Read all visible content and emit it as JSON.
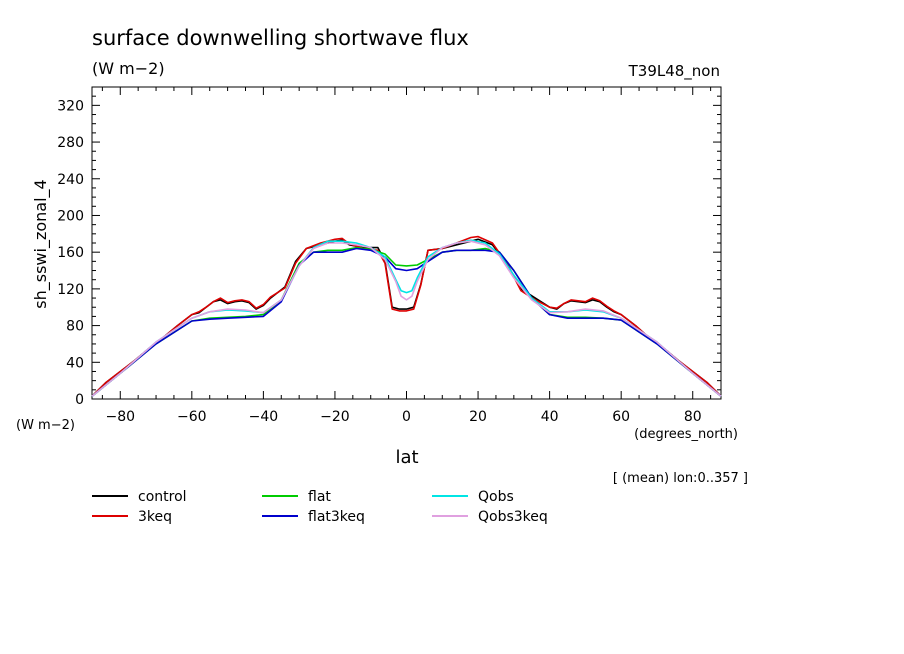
{
  "header": {
    "title": "surface downwelling shortwave flux",
    "units": "(W m−2)",
    "experiment": "T39L48_non"
  },
  "axes": {
    "ylabel": "sh_sswi_zonal_4",
    "yunits": "(W m−2)",
    "xlabel": "lat",
    "xunits": "(degrees_north)"
  },
  "footer_note": "[ (mean) lon:0..357 ]",
  "chart_data": {
    "type": "line",
    "title": "surface downwelling shortwave flux",
    "xlabel": "lat",
    "ylabel": "sh_sswi_zonal_4",
    "xlim": [
      -87.9,
      87.9
    ],
    "ylim": [
      0,
      340
    ],
    "xticks": [
      -80,
      -60,
      -40,
      -20,
      0,
      20,
      40,
      60,
      80
    ],
    "yticks": [
      0,
      40,
      80,
      120,
      160,
      200,
      240,
      280,
      320
    ],
    "grid": false,
    "legend": "bottom",
    "series": [
      {
        "name": "control",
        "color": "#000000",
        "x": [
          -87.9,
          -84,
          -80,
          -76,
          -72,
          -68,
          -64,
          -60,
          -58,
          -56,
          -54,
          -52,
          -50,
          -48,
          -46,
          -44,
          -42,
          -40,
          -38,
          -34,
          -31,
          -28,
          -24,
          -20,
          -18,
          -16,
          -12,
          -8,
          -6,
          -4,
          -2,
          0,
          2,
          4,
          6,
          10,
          14,
          18,
          20,
          24,
          28,
          32,
          36,
          40,
          42,
          44,
          46,
          48,
          50,
          52,
          54,
          56,
          58,
          60,
          64,
          68,
          72,
          76,
          80,
          84,
          87.9
        ],
        "y": [
          3,
          18,
          30,
          42,
          55,
          67,
          80,
          92,
          94,
          100,
          106,
          108,
          104,
          106,
          107,
          105,
          98,
          102,
          110,
          122,
          150,
          164,
          168,
          172,
          173,
          168,
          165,
          165,
          150,
          100,
          98,
          98,
          100,
          125,
          162,
          164,
          168,
          172,
          174,
          168,
          148,
          120,
          110,
          100,
          98,
          104,
          107,
          106,
          105,
          108,
          106,
          100,
          95,
          92,
          80,
          66,
          55,
          42,
          30,
          18,
          3
        ]
      },
      {
        "name": "3keq",
        "color": "#dd0000",
        "x": [
          -87.9,
          -84,
          -80,
          -76,
          -72,
          -68,
          -64,
          -60,
          -58,
          -56,
          -54,
          -52,
          -50,
          -48,
          -46,
          -44,
          -42,
          -40,
          -38,
          -34,
          -31,
          -28,
          -24,
          -20,
          -18,
          -16,
          -12,
          -8,
          -6,
          -4,
          -2,
          0,
          2,
          4,
          6,
          10,
          14,
          18,
          20,
          24,
          28,
          32,
          36,
          40,
          42,
          44,
          46,
          48,
          50,
          52,
          54,
          56,
          58,
          60,
          64,
          68,
          72,
          76,
          80,
          84,
          87.9
        ],
        "y": [
          3,
          18,
          30,
          42,
          55,
          67,
          80,
          92,
          95,
          100,
          106,
          110,
          105,
          107,
          108,
          106,
          99,
          103,
          111,
          121,
          148,
          164,
          170,
          174,
          175,
          169,
          164,
          162,
          148,
          98,
          96,
          96,
          98,
          124,
          162,
          164,
          170,
          176,
          177,
          170,
          148,
          118,
          108,
          100,
          99,
          104,
          108,
          107,
          106,
          110,
          107,
          101,
          96,
          92,
          80,
          66,
          55,
          42,
          30,
          18,
          3
        ]
      },
      {
        "name": "flat",
        "color": "#00cc00",
        "x": [
          -87.9,
          -80,
          -70,
          -60,
          -55,
          -50,
          -45,
          -40,
          -35,
          -30,
          -26,
          -22,
          -18,
          -14,
          -10,
          -6,
          -3,
          0,
          3,
          6,
          10,
          14,
          18,
          22,
          26,
          30,
          35,
          40,
          45,
          50,
          55,
          60,
          70,
          80,
          87.9
        ],
        "y": [
          3,
          28,
          60,
          85,
          88,
          89,
          90,
          92,
          108,
          148,
          160,
          162,
          162,
          165,
          163,
          158,
          146,
          145,
          146,
          152,
          160,
          162,
          162,
          164,
          160,
          140,
          110,
          92,
          89,
          89,
          88,
          86,
          60,
          28,
          3
        ]
      },
      {
        "name": "flat3keq",
        "color": "#0000cc",
        "x": [
          -87.9,
          -80,
          -70,
          -60,
          -55,
          -50,
          -45,
          -40,
          -35,
          -30,
          -26,
          -22,
          -18,
          -14,
          -10,
          -6,
          -3,
          0,
          3,
          6,
          10,
          14,
          18,
          22,
          26,
          30,
          35,
          40,
          45,
          50,
          55,
          60,
          70,
          80,
          87.9
        ],
        "y": [
          3,
          28,
          60,
          85,
          87,
          88,
          89,
          90,
          106,
          146,
          160,
          160,
          160,
          164,
          162,
          155,
          142,
          140,
          142,
          150,
          160,
          162,
          162,
          162,
          160,
          140,
          110,
          92,
          88,
          88,
          88,
          86,
          60,
          28,
          3
        ]
      },
      {
        "name": "Qobs",
        "color": "#00e5e5",
        "x": [
          -87.9,
          -80,
          -70,
          -60,
          -55,
          -50,
          -45,
          -40,
          -35,
          -30,
          -26,
          -22,
          -18,
          -14,
          -10,
          -6,
          -3,
          -1.5,
          0,
          1.5,
          3,
          6,
          10,
          14,
          18,
          22,
          26,
          30,
          35,
          40,
          45,
          50,
          55,
          60,
          70,
          80,
          87.9
        ],
        "y": [
          3,
          28,
          62,
          88,
          95,
          97,
          96,
          94,
          108,
          145,
          165,
          172,
          172,
          170,
          165,
          155,
          130,
          118,
          116,
          118,
          132,
          155,
          165,
          170,
          173,
          170,
          158,
          135,
          110,
          95,
          95,
          97,
          95,
          88,
          62,
          28,
          3
        ]
      },
      {
        "name": "Qobs3keq",
        "color": "#e0a0e0",
        "x": [
          -87.9,
          -80,
          -70,
          -60,
          -55,
          -50,
          -45,
          -40,
          -35,
          -30,
          -26,
          -22,
          -18,
          -14,
          -10,
          -6,
          -3,
          -1.5,
          0,
          1.5,
          3,
          6,
          10,
          14,
          18,
          22,
          26,
          30,
          35,
          40,
          45,
          50,
          55,
          60,
          70,
          80,
          87.9
        ],
        "y": [
          3,
          28,
          62,
          88,
          95,
          98,
          97,
          94,
          108,
          145,
          164,
          170,
          170,
          168,
          165,
          152,
          128,
          112,
          108,
          112,
          128,
          152,
          165,
          170,
          172,
          168,
          156,
          132,
          108,
          94,
          95,
          98,
          96,
          88,
          62,
          28,
          3
        ]
      }
    ]
  }
}
